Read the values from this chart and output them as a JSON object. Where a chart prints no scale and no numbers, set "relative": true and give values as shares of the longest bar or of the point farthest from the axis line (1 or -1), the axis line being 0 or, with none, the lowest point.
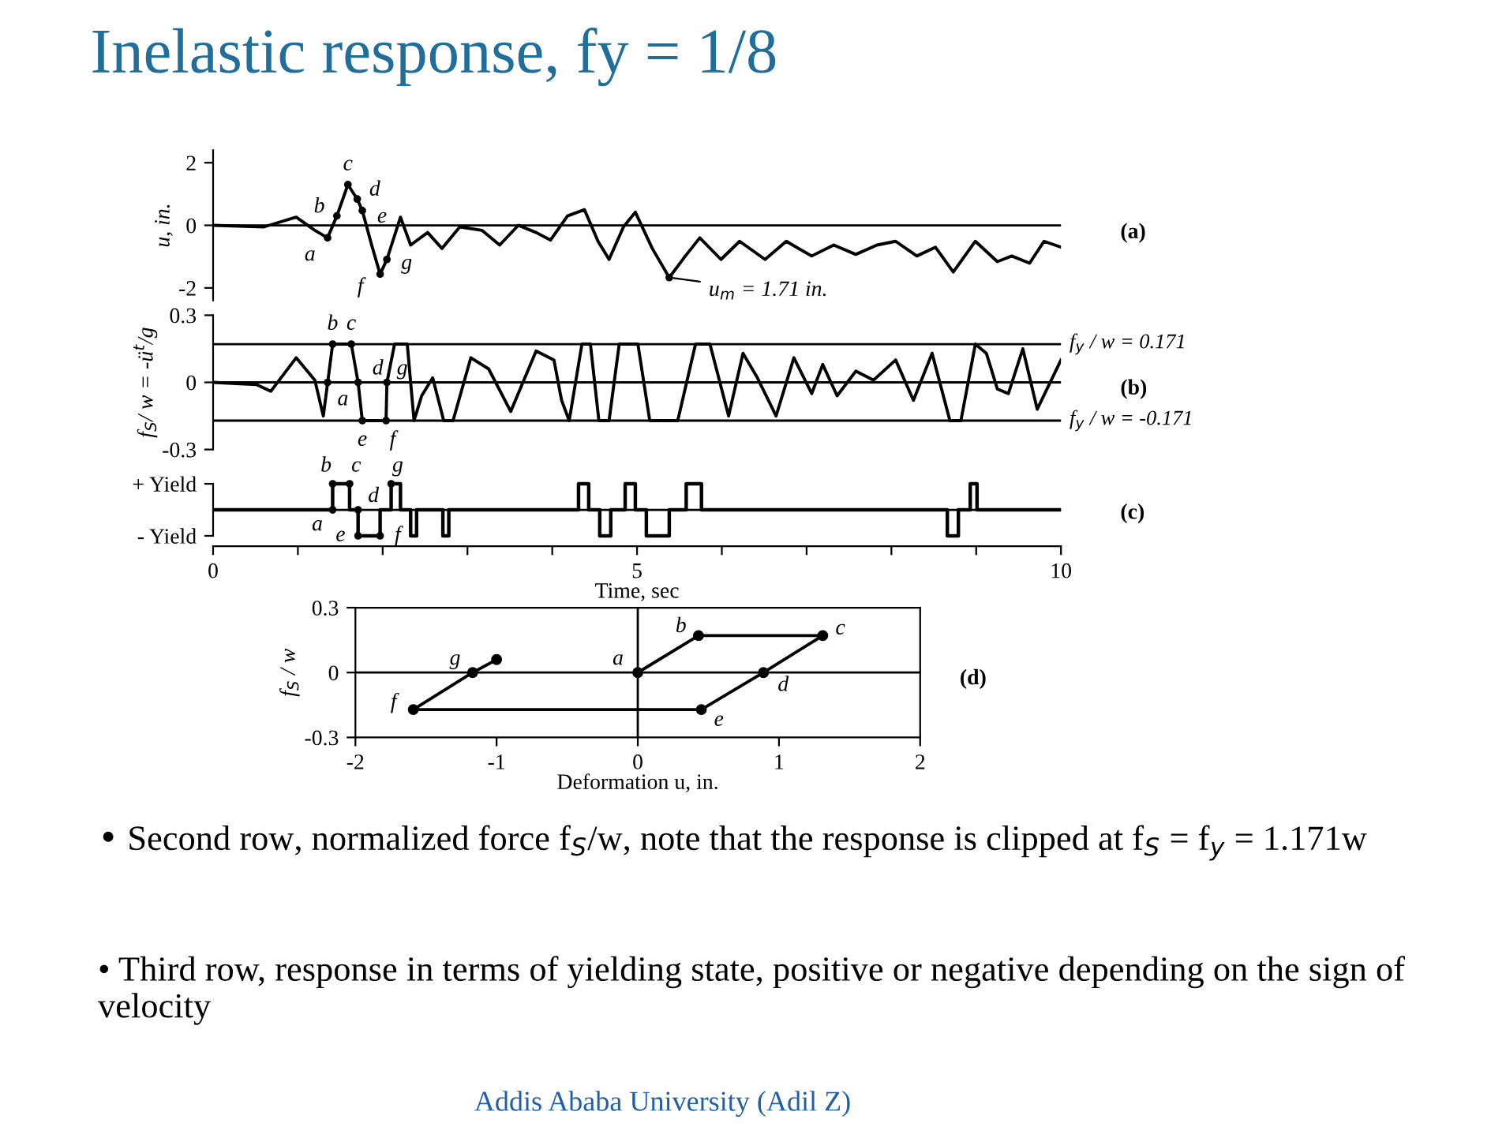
{
  "chart_data": [
    {
      "type": "line",
      "title": "Inelastic response, fy = 1/8",
      "ylabel": "u, in.",
      "xlim": [
        0,
        10
      ],
      "ylim": [
        -2.4,
        2.4
      ],
      "yticks": [
        -2,
        0,
        2
      ],
      "tick_labels": "y",
      "grid": false,
      "series": [
        {
          "color": "#000000",
          "x": [
            0,
            0.6,
            0.98,
            1.2,
            1.35,
            1.46,
            1.59,
            1.7,
            1.76,
            1.87,
            1.97,
            2.05,
            2.21,
            2.33,
            2.53,
            2.7,
            2.91,
            3.17,
            3.38,
            3.6,
            3.81,
            3.98,
            4.18,
            4.38,
            4.54,
            4.67,
            4.84,
            4.98,
            5.18,
            5.38,
            5.57,
            5.74,
            5.99,
            6.21,
            6.51,
            6.76,
            7.06,
            7.32,
            7.58,
            7.83,
            8.05,
            8.3,
            8.52,
            8.73,
            8.99,
            9.25,
            9.42,
            9.63,
            9.8,
            10
          ],
          "values": [
            0,
            -0.05,
            0.26,
            -0.16,
            -0.4,
            0.3,
            1.3,
            0.84,
            0.47,
            -0.63,
            -1.56,
            -1.09,
            0.26,
            -0.63,
            -0.23,
            -0.74,
            -0.05,
            -0.16,
            -0.63,
            0,
            -0.23,
            -0.47,
            0.3,
            0.5,
            -0.51,
            -1.09,
            -0.05,
            0.42,
            -0.74,
            -1.67,
            -0.98,
            -0.4,
            -1.09,
            -0.51,
            -1.09,
            -0.51,
            -0.98,
            -0.63,
            -0.93,
            -0.63,
            -0.51,
            -0.98,
            -0.7,
            -1.49,
            -0.51,
            -1.16,
            -0.98,
            -1.21,
            -0.51,
            -0.7
          ]
        }
      ],
      "ref_lines": [
        {
          "axis": "y",
          "value": 0
        }
      ],
      "annotations": [
        "(a)",
        {
          "text": "a",
          "x": 1.35,
          "y": -0.4
        },
        {
          "text": "b",
          "x": 1.46,
          "y": 0.3
        },
        {
          "text": "c",
          "x": 1.59,
          "y": 1.3
        },
        {
          "text": "d",
          "x": 1.7,
          "y": 0.84
        },
        {
          "text": "e",
          "x": 1.76,
          "y": 0.47
        },
        {
          "text": "f",
          "x": 1.97,
          "y": -1.56
        },
        {
          "text": "g",
          "x": 2.05,
          "y": -1.09
        },
        {
          "text": "u$_{m}$ = 1.71 in.",
          "x": 5.38,
          "y": -1.67
        }
      ]
    },
    {
      "type": "line",
      "ylabel": "f$_{S}$/ w = -ü$^{t}$/g",
      "xlim": [
        0,
        10
      ],
      "ylim": [
        -0.3,
        0.3
      ],
      "yticks": [
        -0.3,
        0,
        0.3
      ],
      "tick_labels": "y",
      "grid": false,
      "series": [
        {
          "color": "#000000",
          "x": [
            0,
            0.51,
            0.68,
            0.98,
            1.2,
            1.3,
            1.41,
            1.63,
            1.71,
            1.76,
            2.04,
            2.05,
            2.14,
            2.29,
            2.37,
            2.46,
            2.59,
            2.72,
            2.83,
            3.04,
            3.25,
            3.51,
            3.81,
            4.02,
            4.11,
            4.2,
            4.35,
            4.45,
            4.55,
            4.67,
            4.79,
            5.01,
            5.15,
            5.48,
            5.69,
            5.86,
            6.08,
            6.25,
            6.42,
            6.64,
            6.85,
            7.06,
            7.19,
            7.36,
            7.58,
            7.79,
            8.05,
            8.26,
            8.48,
            8.69,
            8.82,
            8.99,
            9.12,
            9.25,
            9.38,
            9.55,
            9.72,
            10
          ],
          "values": [
            0,
            -0.01,
            -0.04,
            0.11,
            0.01,
            -0.15,
            0.171,
            0.171,
            0,
            -0.171,
            -0.171,
            0,
            0.171,
            0.171,
            -0.171,
            -0.06,
            0.02,
            -0.171,
            -0.171,
            0.11,
            0.06,
            -0.13,
            0.14,
            0.1,
            -0.08,
            -0.171,
            0.171,
            0.171,
            -0.171,
            -0.171,
            0.171,
            0.171,
            -0.171,
            -0.171,
            0.171,
            0.171,
            -0.15,
            0.13,
            0.02,
            -0.15,
            0.11,
            -0.05,
            0.08,
            -0.06,
            0.05,
            0.01,
            0.1,
            -0.08,
            0.13,
            -0.171,
            -0.171,
            0.171,
            0.13,
            -0.03,
            -0.05,
            0.15,
            -0.12,
            0.1
          ]
        }
      ],
      "ref_lines": [
        {
          "axis": "y",
          "value": 0
        },
        {
          "axis": "y",
          "value": 0.171,
          "label": "f$_{y}$ / w = 0.171"
        },
        {
          "axis": "y",
          "value": -0.171,
          "label": "f$_{y}$ / w = -0.171"
        }
      ],
      "annotations": [
        "(b)",
        {
          "text": "a",
          "x": 1.35,
          "y": 0
        },
        {
          "text": "b",
          "x": 1.41,
          "y": 0.171
        },
        {
          "text": "c",
          "x": 1.63,
          "y": 0.171
        },
        {
          "text": "d",
          "x": 1.71,
          "y": 0
        },
        {
          "text": "e",
          "x": 1.76,
          "y": -0.171
        },
        {
          "text": "f",
          "x": 2.04,
          "y": -0.171
        },
        {
          "text": "g",
          "x": 2.05,
          "y": 0
        }
      ]
    },
    {
      "type": "step",
      "xlabel": "Time, sec",
      "xlim": [
        0,
        10
      ],
      "relative": true,
      "y_categories": [
        "+ Yield",
        "- Yield"
      ],
      "xticks": [
        0,
        {
          "value": 1,
          "label": null
        },
        {
          "value": 2,
          "label": null
        },
        {
          "value": 3,
          "label": null
        },
        {
          "value": 4,
          "label": null
        },
        5,
        {
          "value": 6,
          "label": null
        },
        {
          "value": 7,
          "label": null
        },
        {
          "value": 8,
          "label": null
        },
        {
          "value": 9,
          "label": null
        },
        10
      ],
      "grid": false,
      "ref_lines": [
        {
          "axis": "y",
          "value": 0
        }
      ],
      "series": [
        {
          "color": "#000000",
          "x": [
            0,
            1.41,
            1.61,
            1.71,
            1.97,
            2.1,
            2.21,
            2.33,
            2.4,
            2.71,
            2.78,
            4.31,
            4.43,
            4.56,
            4.69,
            4.86,
            4.98,
            5.11,
            5.38,
            5.58,
            5.76,
            8.66,
            8.79,
            8.93,
            9.01,
            10
          ],
          "values": [
            0,
            1,
            0,
            -1,
            0,
            1,
            0,
            -1,
            0,
            -1,
            0,
            1,
            0,
            -1,
            0,
            1,
            0,
            -1,
            0,
            1,
            0,
            -1,
            0,
            1,
            0,
            0
          ]
        }
      ],
      "annotations": [
        "(c)",
        {
          "text": "a",
          "x": 1.41,
          "y": 0
        },
        {
          "text": "b",
          "x": 1.41,
          "y": 1
        },
        {
          "text": "c",
          "x": 1.61,
          "y": 1
        },
        {
          "text": "d",
          "x": 1.71,
          "y": 0
        },
        {
          "text": "e",
          "x": 1.71,
          "y": -1
        },
        {
          "text": "f",
          "x": 1.97,
          "y": -1
        },
        {
          "text": "g",
          "x": 2.1,
          "y": 1
        }
      ]
    },
    {
      "type": "line",
      "xlabel": "Deformation u, in.",
      "ylabel": "f$_{S}$ / w",
      "xlim": [
        -2,
        2
      ],
      "ylim": [
        -0.3,
        0.3
      ],
      "xticks": [
        -2,
        -1,
        0,
        1,
        2
      ],
      "yticks": [
        -0.3,
        0,
        0.3
      ],
      "grid": false,
      "series": [
        {
          "color": "#000000",
          "marker": "circle",
          "x": [
            0,
            0.43,
            1.31,
            0.89,
            0.45,
            -1.59,
            -1.17,
            -1.0
          ],
          "values": [
            0,
            0.171,
            0.171,
            0,
            -0.171,
            -0.171,
            0,
            0.06
          ]
        }
      ],
      "ref_lines": [
        {
          "axis": "y",
          "value": 0
        },
        {
          "axis": "x",
          "value": 0
        }
      ],
      "annotations": [
        "(d)",
        {
          "text": "a",
          "x": 0,
          "y": 0
        },
        {
          "text": "b",
          "x": 0.43,
          "y": 0.171
        },
        {
          "text": "c",
          "x": 1.31,
          "y": 0.171
        },
        {
          "text": "d",
          "x": 0.89,
          "y": 0
        },
        {
          "text": "e",
          "x": 0.45,
          "y": -0.171
        },
        {
          "text": "f",
          "x": -1.59,
          "y": -0.171
        },
        {
          "text": "g",
          "x": -1.17,
          "y": 0
        },
        "• Second row, normalized force f$_{S}$/w, note that the response is clipped at f$_{S}$ = f$_{y}$ = 1.171w",
        "• Third row, response in terms of yielding state, positive or negative depending on the sign of velocity",
        "Addis Ababa University (Adil Z)"
      ]
    }
  ]
}
